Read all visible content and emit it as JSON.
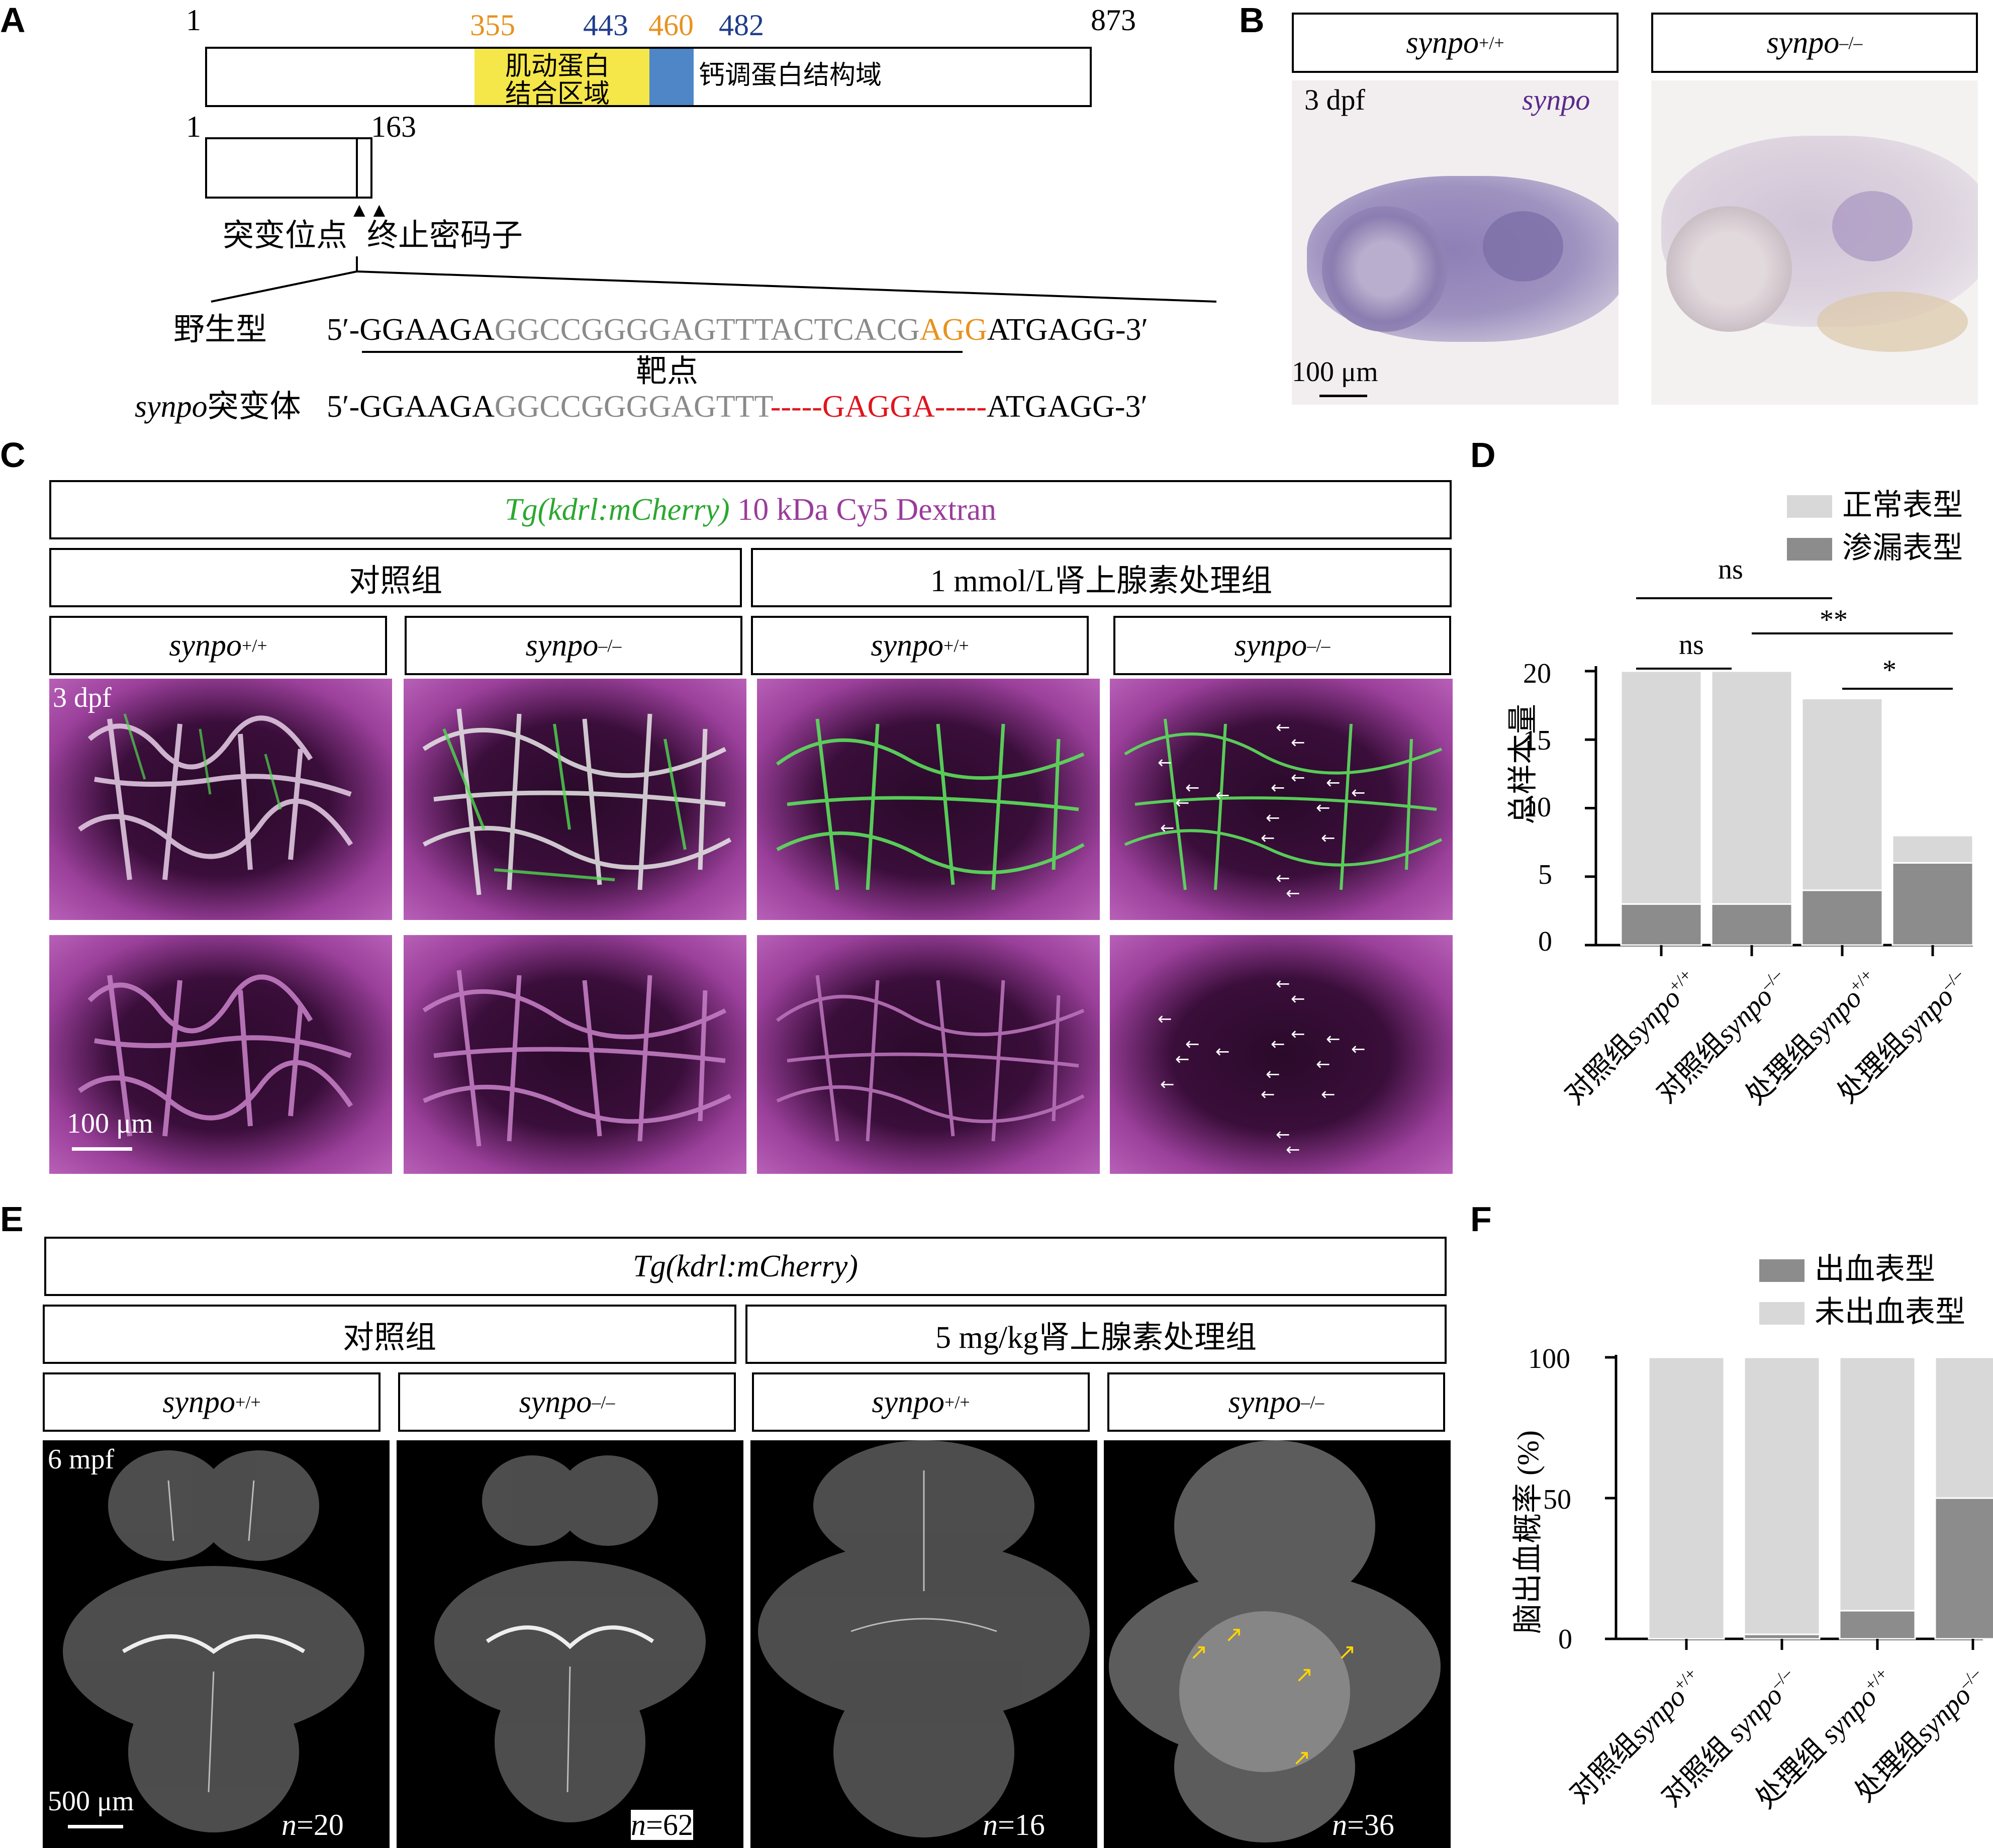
{
  "panelA": {
    "letter": "A",
    "pos1": "1",
    "pos873": "873",
    "pos355": "355",
    "pos443": "443",
    "pos460": "460",
    "pos482": "482",
    "actin_domain": "肌动蛋白\n结合区域",
    "actin_line1": "肌动蛋白",
    "actin_line2": "结合区域",
    "calm_domain": "钙调蛋白结构域",
    "mut_pos1": "1",
    "mut_pos163": "163",
    "mut_site": "突变位点",
    "stop_codon": "终止密码子",
    "wt_label": "野生型",
    "wt_seq_a": "5′-GGAAGA",
    "wt_seq_b": "GGCCGGGGAGTTTACTCACG",
    "wt_seq_c": "AGG",
    "wt_seq_d": "ATGAGG-3′",
    "target": "靶点",
    "mut_label_italic": "synpo",
    "mut_label": "突变体",
    "mut_seq_a": "5′-GGAAGA",
    "mut_seq_b": "GGCCGGGGAGTTT",
    "mut_seq_c": "-----GAGGA-----",
    "mut_seq_d": "ATGAGG-3′",
    "colors": {
      "orange": "#E8921E",
      "blue": "#1F3D8C",
      "yellow": "#F5E64A",
      "domainBlue": "#4E86C8",
      "red": "#E0141E",
      "gray": "#8A8A8A"
    }
  },
  "panelB": {
    "letter": "B",
    "header_wt": "synpo",
    "header_wt_sup": "+/+",
    "header_mut": "synpo",
    "header_mut_sup": "–/–",
    "stage": "3 dpf",
    "probe": "synpo",
    "scale": "100 μm"
  },
  "panelC": {
    "letter": "C",
    "title_green": "Tg(kdrl:mCherry)",
    "title_purple": " 10 kDa Cy5 Dextran",
    "group_ctrl": "对照组",
    "group_treat": "1 mmol/L肾上腺素处理组",
    "geno": [
      {
        "name": "synpo",
        "sup": "+/+"
      },
      {
        "name": "synpo",
        "sup": "–/–"
      },
      {
        "name": "synpo",
        "sup": "+/+"
      },
      {
        "name": "synpo",
        "sup": "–/–"
      }
    ],
    "stage": "3 dpf",
    "scale": "100 μm"
  },
  "panelD": {
    "letter": "D",
    "legend": [
      "正常表型",
      "渗漏表型"
    ],
    "ylabel": "总样本量",
    "sig": [
      "ns",
      "ns",
      "**",
      "*"
    ],
    "xlabels": [
      {
        "prefix": "对照组",
        "name": "synpo",
        "sup": "+/+"
      },
      {
        "prefix": "对照组",
        "name": "synpo",
        "sup": "–/–"
      },
      {
        "prefix": "处理组",
        "name": "synpo",
        "sup": "+/+"
      },
      {
        "prefix": "处理组",
        "name": "synpo",
        "sup": "–/–"
      }
    ],
    "yticks": [
      "0",
      "5",
      "10",
      "15",
      "20"
    ]
  },
  "panelE": {
    "letter": "E",
    "title": "Tg(kdrl:mCherry)",
    "group_ctrl": "对照组",
    "group_treat": "5 mg/kg肾上腺素处理组",
    "geno": [
      {
        "name": "synpo",
        "sup": "+/+"
      },
      {
        "name": "synpo",
        "sup": "–/–"
      },
      {
        "name": "synpo",
        "sup": "+/+"
      },
      {
        "name": "synpo",
        "sup": "–/–"
      }
    ],
    "stage": "6 mpf",
    "scale": "500 μm",
    "n": [
      "=20",
      "=62",
      "=16",
      "=36"
    ],
    "n_italic": "n"
  },
  "panelF": {
    "letter": "F",
    "legend": [
      "出血表型",
      "未出血表型"
    ],
    "ylabel": "脑出血概率 (%)",
    "yticks": [
      "0",
      "50",
      "100"
    ],
    "xlabels": [
      {
        "prefix": "对照组",
        "name": "synpo",
        "sup": "+/+"
      },
      {
        "prefix": "对照组 ",
        "name": "synpo",
        "sup": "–/–"
      },
      {
        "prefix": "处理组 ",
        "name": "synpo",
        "sup": "+/+"
      },
      {
        "prefix": "处理组",
        "name": "synpo",
        "sup": "–/–"
      }
    ]
  },
  "chart_data": [
    {
      "type": "bar",
      "categories": [
        "对照组synpo+/+",
        "对照组synpo–/–",
        "处理组synpo+/+",
        "处理组synpo–/–"
      ],
      "series": [
        {
          "name": "渗漏表型",
          "values": [
            3,
            3,
            4,
            6
          ]
        },
        {
          "name": "正常表型",
          "values": [
            17,
            17,
            14,
            2
          ]
        }
      ],
      "stacked": true,
      "ylabel": "总样本量",
      "ylim": [
        0,
        20
      ],
      "colors": [
        "#8C8C8C",
        "#D8D8D8"
      ]
    },
    {
      "type": "bar",
      "categories": [
        "对照组synpo+/+",
        "对照组 synpo–/–",
        "处理组 synpo+/+",
        "处理组synpo–/–"
      ],
      "series": [
        {
          "name": "出血表型",
          "values": [
            0,
            1.6,
            10,
            50
          ]
        },
        {
          "name": "未出血表型",
          "values": [
            100,
            98.4,
            90,
            50
          ]
        }
      ],
      "stacked": true,
      "ylabel": "脑出血概率 (%)",
      "ylim": [
        0,
        100
      ],
      "colors": [
        "#8C8C8C",
        "#D8D8D8"
      ]
    }
  ]
}
